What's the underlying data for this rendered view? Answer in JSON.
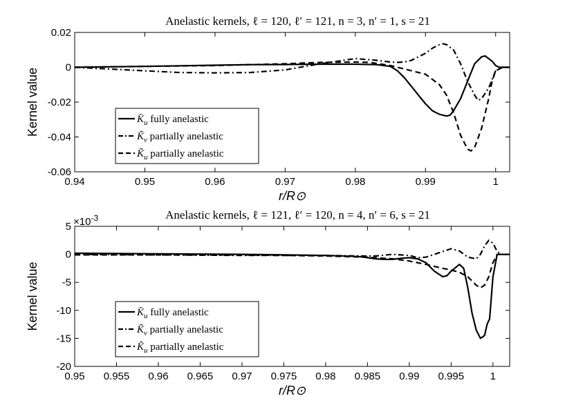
{
  "chart_data": [
    {
      "type": "line",
      "title": "Anelastic kernels, ℓ = 120, ℓ′ = 121, n = 3, n′ = 1, s = 21",
      "xlabel": "r/R⊙",
      "ylabel": "Kernel value",
      "xlim": [
        0.94,
        1.002
      ],
      "ylim": [
        -0.06,
        0.02
      ],
      "xticks": [
        0.94,
        0.95,
        0.96,
        0.97,
        0.98,
        0.99,
        1
      ],
      "xtick_labels": [
        "0.94",
        "0.95",
        "0.96",
        "0.97",
        "0.98",
        "0.99",
        "1"
      ],
      "yticks": [
        0.02,
        0,
        -0.02,
        -0.04,
        -0.06
      ],
      "ytick_labels": [
        "0.02",
        "0",
        "-0.02",
        "-0.04",
        "-0.06"
      ],
      "y_exponent": "",
      "grid": false,
      "legend_position": "lower-left",
      "series": [
        {
          "name": "K̄u fully anelastic",
          "symbol": "K̄",
          "sub": "u",
          "rest": " fully anelastic",
          "style": "solid",
          "x": [
            0.94,
            0.95,
            0.96,
            0.965,
            0.97,
            0.975,
            0.98,
            0.983,
            0.985,
            0.986,
            0.987,
            0.988,
            0.989,
            0.99,
            0.991,
            0.992,
            0.993,
            0.9935,
            0.994,
            0.995,
            0.996,
            0.997,
            0.998,
            0.9985,
            0.999,
            0.9995,
            1.0,
            1.0005,
            1.001,
            1.002
          ],
          "y": [
            0,
            0.0005,
            0.0012,
            0.0015,
            0.0016,
            0.0018,
            0.0018,
            0.0015,
            0.0005,
            -0.002,
            -0.006,
            -0.011,
            -0.016,
            -0.021,
            -0.025,
            -0.027,
            -0.028,
            -0.0275,
            -0.025,
            -0.018,
            -0.008,
            0.002,
            0.006,
            0.0065,
            0.005,
            0.0035,
            0.001,
            0,
            0,
            0
          ]
        },
        {
          "name": "K̃v partially anelastic",
          "symbol": "K̃",
          "sub": "v",
          "rest": " partially anelastic",
          "style": "dashdot",
          "x": [
            0.94,
            0.95,
            0.955,
            0.96,
            0.965,
            0.97,
            0.975,
            0.98,
            0.983,
            0.985,
            0.986,
            0.987,
            0.988,
            0.989,
            0.99,
            0.991,
            0.992,
            0.9925,
            0.993,
            0.994,
            0.995,
            0.996,
            0.997,
            0.9975,
            0.998,
            0.999,
            0.9995,
            1.0,
            1.001,
            1.002
          ],
          "y": [
            0,
            -0.002,
            -0.003,
            -0.0032,
            -0.003,
            -0.0015,
            0.002,
            0.005,
            0.004,
            0.003,
            0.0028,
            0.003,
            0.004,
            0.006,
            0.008,
            0.011,
            0.013,
            0.0135,
            0.013,
            0.01,
            0.002,
            -0.008,
            -0.016,
            -0.019,
            -0.018,
            -0.012,
            -0.007,
            -0.002,
            0,
            0
          ]
        },
        {
          "name": "K̃u partially anelastic",
          "symbol": "K̃",
          "sub": "u",
          "rest": " partially anelastic",
          "style": "dashed",
          "x": [
            0.94,
            0.95,
            0.96,
            0.97,
            0.975,
            0.98,
            0.982,
            0.985,
            0.988,
            0.99,
            0.992,
            0.993,
            0.994,
            0.995,
            0.996,
            0.9965,
            0.997,
            0.998,
            0.999,
            0.9995,
            1.0,
            1.001,
            1.002
          ],
          "y": [
            0,
            0.0005,
            0.001,
            0.002,
            0.0028,
            0.003,
            0.0028,
            0.001,
            -0.002,
            -0.004,
            -0.01,
            -0.016,
            -0.026,
            -0.039,
            -0.047,
            -0.048,
            -0.046,
            -0.035,
            -0.018,
            -0.008,
            -0.002,
            0,
            0
          ]
        }
      ]
    },
    {
      "type": "line",
      "title": "Anelastic kernels, ℓ = 121, ℓ′ = 120, n = 4, n′ = 6, s = 21",
      "xlabel": "r/R⊙",
      "ylabel": "Kernel value",
      "xlim": [
        0.95,
        1.002
      ],
      "ylim": [
        -20,
        5
      ],
      "xticks": [
        0.95,
        0.955,
        0.96,
        0.965,
        0.97,
        0.975,
        0.98,
        0.985,
        0.99,
        0.995,
        1
      ],
      "xtick_labels": [
        "0.95",
        "0.955",
        "0.96",
        "0.965",
        "0.97",
        "0.975",
        "0.98",
        "0.985",
        "0.99",
        "0.995",
        "1"
      ],
      "yticks": [
        5,
        0,
        -5,
        -10,
        -15,
        -20
      ],
      "ytick_labels": [
        "5",
        "0",
        "-5",
        "-10",
        "-15",
        "-20"
      ],
      "y_exponent": "×10-3",
      "grid": false,
      "legend_position": "lower-left",
      "series": [
        {
          "name": "K̄u fully anelastic",
          "symbol": "K̄",
          "sub": "u",
          "rest": " fully anelastic",
          "style": "solid",
          "x": [
            0.95,
            0.96,
            0.97,
            0.975,
            0.98,
            0.984,
            0.986,
            0.987,
            0.988,
            0.989,
            0.99,
            0.991,
            0.992,
            0.993,
            0.994,
            0.9945,
            0.995,
            0.996,
            0.9965,
            0.997,
            0.9975,
            0.998,
            0.9985,
            0.999,
            0.9993,
            0.9996,
            1.0,
            1.0005,
            1.001,
            1.002
          ],
          "y": [
            0.2,
            0.1,
            0,
            -0.1,
            -0.2,
            -0.4,
            -0.8,
            -0.9,
            -0.9,
            -0.7,
            -0.6,
            -0.8,
            -1.5,
            -3.0,
            -4.0,
            -3.8,
            -3.0,
            -1.8,
            -2.5,
            -6.0,
            -10.5,
            -13.5,
            -15.0,
            -14.5,
            -12.5,
            -11.5,
            -4.0,
            0,
            0,
            0
          ]
        },
        {
          "name": "K̃v partially anelastic",
          "symbol": "K̃",
          "sub": "v",
          "rest": " partially anelastic",
          "style": "dashdot",
          "x": [
            0.95,
            0.96,
            0.97,
            0.975,
            0.98,
            0.984,
            0.986,
            0.988,
            0.99,
            0.991,
            0.992,
            0.993,
            0.994,
            0.995,
            0.996,
            0.997,
            0.998,
            0.9985,
            0.999,
            0.9995,
            1.0,
            1.0005,
            1.001,
            1.002
          ],
          "y": [
            0,
            -0.1,
            -0.2,
            -0.2,
            -0.2,
            -0.3,
            -0.3,
            0,
            -0.2,
            -0.6,
            -0.5,
            0,
            0.5,
            1.0,
            0.6,
            -0.5,
            -0.8,
            0,
            1.5,
            2.5,
            2.0,
            0.5,
            0,
            0
          ]
        },
        {
          "name": "K̃u partially anelastic",
          "symbol": "K̃",
          "sub": "u",
          "rest": " partially anelastic",
          "style": "dashed",
          "x": [
            0.95,
            0.96,
            0.97,
            0.975,
            0.98,
            0.985,
            0.988,
            0.99,
            0.992,
            0.994,
            0.995,
            0.996,
            0.997,
            0.998,
            0.9985,
            0.999,
            0.9995,
            1.0,
            1.0005,
            1.001,
            1.002
          ],
          "y": [
            -0.1,
            -0.1,
            -0.1,
            -0.2,
            -0.3,
            -0.5,
            -0.8,
            -1.2,
            -1.8,
            -2.5,
            -2.8,
            -3.2,
            -4.0,
            -5.5,
            -6.0,
            -5.5,
            -4.0,
            -1.5,
            0,
            0,
            0
          ]
        }
      ]
    }
  ]
}
